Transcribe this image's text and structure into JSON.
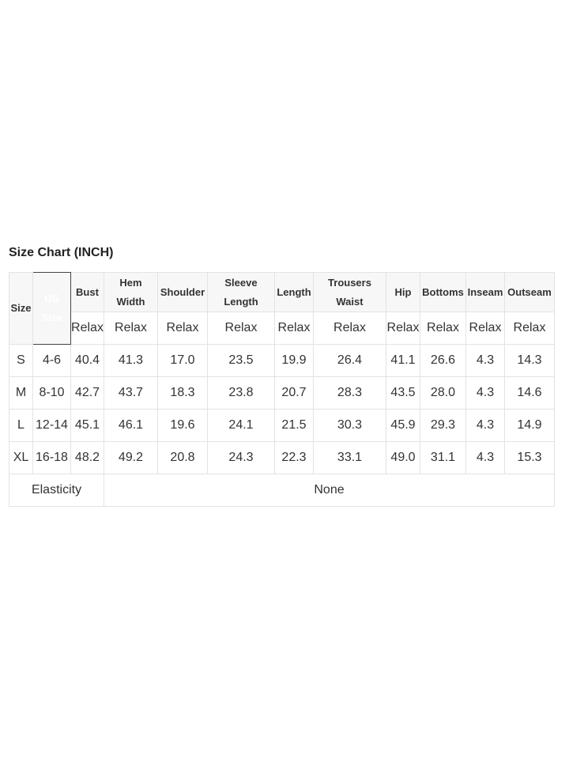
{
  "title": "Size Chart (INCH)",
  "header": {
    "size": "Size",
    "us_size": "US Size",
    "columns": [
      "Bust",
      "Hem Width",
      "Shoulder",
      "Sleeve Length",
      "Length",
      "Trousers Waist",
      "Hip",
      "Bottoms",
      "Inseam",
      "Outseam"
    ],
    "fit": [
      "Relax",
      "Relax",
      "Relax",
      "Relax",
      "Relax",
      "Relax",
      "Relax",
      "Relax",
      "Relax",
      "Relax"
    ]
  },
  "rows": [
    {
      "size": "S",
      "us": "4-6",
      "values": [
        "40.4",
        "41.3",
        "17.0",
        "23.5",
        "19.9",
        "26.4",
        "41.1",
        "26.6",
        "4.3",
        "14.3"
      ]
    },
    {
      "size": "M",
      "us": "8-10",
      "values": [
        "42.7",
        "43.7",
        "18.3",
        "23.8",
        "20.7",
        "28.3",
        "43.5",
        "28.0",
        "4.3",
        "14.6"
      ]
    },
    {
      "size": "L",
      "us": "12-14",
      "values": [
        "45.1",
        "46.1",
        "19.6",
        "24.1",
        "21.5",
        "30.3",
        "45.9",
        "29.3",
        "4.3",
        "14.9"
      ]
    },
    {
      "size": "XL",
      "us": "16-18",
      "values": [
        "48.2",
        "49.2",
        "20.8",
        "24.3",
        "22.3",
        "33.1",
        "49.0",
        "31.1",
        "4.3",
        "15.3"
      ]
    }
  ],
  "elasticity": {
    "label": "Elasticity",
    "value": "None"
  }
}
